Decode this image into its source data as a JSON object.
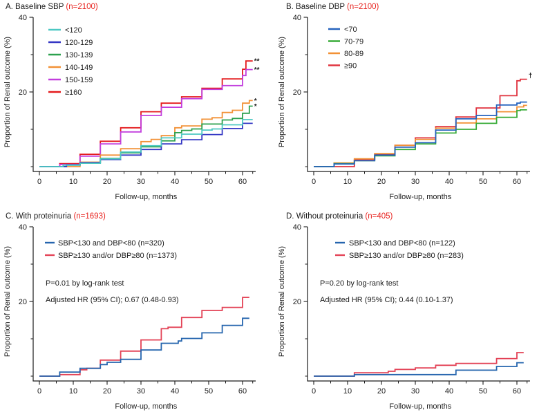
{
  "figure": {
    "background": "#ffffff",
    "text_color": "#1a1a1a",
    "n_label_color": "#e8231f"
  },
  "chart_data": [
    {
      "panel": "A",
      "type": "line",
      "step": true,
      "title": "A. Baseline SBP",
      "n_label": "(n=2100)",
      "xlabel": "Follow-up, months",
      "ylabel": "Proportion of Renal outcome (%)",
      "xlim": [
        0,
        64
      ],
      "ylim": [
        0,
        40
      ],
      "xticks": [
        0,
        10,
        20,
        30,
        40,
        50,
        60
      ],
      "xticks_minor": [
        5,
        15,
        25,
        35,
        45,
        55,
        63
      ],
      "yticks": [
        20,
        40
      ],
      "yticks_minor": [
        0,
        10,
        30
      ],
      "legend_position": "upper-left",
      "stats": [],
      "series": [
        {
          "name": "<120",
          "color": "#4cc8c3",
          "end_marker": "",
          "points": [
            [
              0,
              0
            ],
            [
              7,
              0.4
            ],
            [
              12,
              0.9
            ],
            [
              18,
              2.1
            ],
            [
              24,
              3.9
            ],
            [
              30,
              5.6
            ],
            [
              36,
              7.7
            ],
            [
              42,
              8.7
            ],
            [
              48,
              9.8
            ],
            [
              51,
              10.1
            ],
            [
              54,
              11.2
            ],
            [
              60,
              12.6
            ],
            [
              63,
              12.6
            ]
          ]
        },
        {
          "name": "120-129",
          "color": "#3437c4",
          "end_marker": "",
          "points": [
            [
              0,
              0
            ],
            [
              8,
              0.5
            ],
            [
              12,
              1.1
            ],
            [
              18,
              1.9
            ],
            [
              24,
              3.1
            ],
            [
              30,
              4.6
            ],
            [
              36,
              6.1
            ],
            [
              42,
              7.2
            ],
            [
              48,
              8.6
            ],
            [
              54,
              10.2
            ],
            [
              60,
              11.6
            ],
            [
              63,
              11.6
            ]
          ]
        },
        {
          "name": "130-139",
          "color": "#2ca14e",
          "end_marker": "*",
          "points": [
            [
              0,
              0
            ],
            [
              8,
              0.4
            ],
            [
              12,
              1.0
            ],
            [
              18,
              2.2
            ],
            [
              24,
              3.7
            ],
            [
              30,
              5.3
            ],
            [
              36,
              6.9
            ],
            [
              40,
              9.1
            ],
            [
              42,
              9.7
            ],
            [
              45,
              10.1
            ],
            [
              48,
              11.4
            ],
            [
              54,
              12.5
            ],
            [
              57,
              12.9
            ],
            [
              60,
              14.3
            ],
            [
              62,
              16.2
            ],
            [
              63,
              16.2
            ]
          ]
        },
        {
          "name": "140-149",
          "color": "#f29136",
          "end_marker": "*",
          "points": [
            [
              0,
              0
            ],
            [
              12,
              1.2
            ],
            [
              18,
              3.1
            ],
            [
              24,
              4.8
            ],
            [
              30,
              6.7
            ],
            [
              33,
              7.3
            ],
            [
              36,
              8.3
            ],
            [
              40,
              10.4
            ],
            [
              42,
              10.9
            ],
            [
              48,
              12.7
            ],
            [
              51,
              13.1
            ],
            [
              54,
              14.5
            ],
            [
              57,
              15.1
            ],
            [
              60,
              17.0
            ],
            [
              62,
              17.7
            ],
            [
              63,
              17.7
            ]
          ]
        },
        {
          "name": "150-159",
          "color": "#c23ede",
          "end_marker": "**",
          "points": [
            [
              0,
              0
            ],
            [
              6,
              0.6
            ],
            [
              12,
              2.8
            ],
            [
              18,
              6.1
            ],
            [
              24,
              9.3
            ],
            [
              30,
              13.7
            ],
            [
              36,
              15.9
            ],
            [
              42,
              18.2
            ],
            [
              48,
              20.7
            ],
            [
              54,
              21.7
            ],
            [
              60,
              24.4
            ],
            [
              61,
              26.0
            ],
            [
              63,
              26.0
            ]
          ]
        },
        {
          "name": "≥160",
          "color": "#e41a1c",
          "end_marker": "**",
          "points": [
            [
              0,
              0
            ],
            [
              6,
              0.8
            ],
            [
              12,
              3.3
            ],
            [
              18,
              6.8
            ],
            [
              24,
              10.4
            ],
            [
              30,
              14.7
            ],
            [
              36,
              17.0
            ],
            [
              42,
              18.7
            ],
            [
              48,
              21.0
            ],
            [
              54,
              23.5
            ],
            [
              60,
              26.1
            ],
            [
              61,
              28.3
            ],
            [
              63,
              28.3
            ]
          ]
        }
      ]
    },
    {
      "panel": "B",
      "type": "line",
      "step": true,
      "title": "B. Baseline DBP",
      "n_label": "(n=2100)",
      "xlabel": "Follow-up, months",
      "ylabel": "Proportion of Renal outcome (%)",
      "xlim": [
        0,
        64
      ],
      "ylim": [
        0,
        40
      ],
      "xticks": [
        0,
        10,
        20,
        30,
        40,
        50,
        60
      ],
      "xticks_minor": [
        5,
        15,
        25,
        35,
        45,
        55,
        63
      ],
      "yticks": [
        20,
        40
      ],
      "yticks_minor": [
        0,
        10,
        30
      ],
      "legend_position": "upper-left",
      "stats": [],
      "series": [
        {
          "name": "<70",
          "color": "#2563be",
          "end_marker": "",
          "points": [
            [
              0,
              0
            ],
            [
              6,
              0.7
            ],
            [
              12,
              1.6
            ],
            [
              18,
              3.1
            ],
            [
              24,
              5.2
            ],
            [
              30,
              6.4
            ],
            [
              36,
              9.8
            ],
            [
              42,
              12.8
            ],
            [
              48,
              13.7
            ],
            [
              54,
              16.5
            ],
            [
              60,
              17.0
            ],
            [
              61,
              17.3
            ],
            [
              63,
              17.3
            ]
          ]
        },
        {
          "name": "70-79",
          "color": "#39ac39",
          "end_marker": "",
          "points": [
            [
              0,
              0
            ],
            [
              6,
              0.8
            ],
            [
              12,
              1.6
            ],
            [
              18,
              2.9
            ],
            [
              24,
              4.6
            ],
            [
              30,
              6.1
            ],
            [
              36,
              9.0
            ],
            [
              42,
              10.0
            ],
            [
              48,
              11.6
            ],
            [
              54,
              13.2
            ],
            [
              60,
              15.0
            ],
            [
              61,
              15.2
            ],
            [
              63,
              15.2
            ]
          ]
        },
        {
          "name": "80-89",
          "color": "#f29136",
          "end_marker": "",
          "points": [
            [
              0,
              0
            ],
            [
              6,
              1.0
            ],
            [
              12,
              2.1
            ],
            [
              18,
              3.5
            ],
            [
              24,
              5.7
            ],
            [
              30,
              7.3
            ],
            [
              36,
              10.3
            ],
            [
              42,
              11.7
            ],
            [
              48,
              12.8
            ],
            [
              54,
              14.7
            ],
            [
              60,
              16.0
            ],
            [
              62,
              16.4
            ],
            [
              63,
              16.4
            ]
          ]
        },
        {
          "name": "≥90",
          "color": "#e0333f",
          "end_marker": "†",
          "points": [
            [
              0,
              0
            ],
            [
              12,
              1.9
            ],
            [
              18,
              3.4
            ],
            [
              24,
              5.7
            ],
            [
              30,
              7.7
            ],
            [
              36,
              10.7
            ],
            [
              42,
              13.3
            ],
            [
              48,
              15.7
            ],
            [
              55,
              19.0
            ],
            [
              60,
              23.0
            ],
            [
              61,
              23.4
            ],
            [
              63,
              23.4
            ]
          ]
        }
      ]
    },
    {
      "panel": "C",
      "type": "line",
      "step": true,
      "title": "C. With proteinuria",
      "n_label": "(n=1693)",
      "xlabel": "Follow-up, months",
      "ylabel": "Proportion of Renal outcome (%)",
      "xlim": [
        0,
        64
      ],
      "ylim": [
        0,
        40
      ],
      "xticks": [
        0,
        10,
        20,
        30,
        40,
        50,
        60
      ],
      "xticks_minor": [
        5,
        15,
        25,
        35,
        45,
        55,
        63
      ],
      "yticks": [
        20,
        40
      ],
      "yticks_minor": [
        0,
        10,
        30
      ],
      "legend_position": "upper-left",
      "stats": [
        "P=0.01 by log-rank test",
        "Adjusted HR (95% CI); 0.67 (0.48-0.93)"
      ],
      "series": [
        {
          "name": "SBP<130 and DBP<80 (n=320)",
          "color": "#2565ae",
          "end_marker": "",
          "points": [
            [
              0,
              0
            ],
            [
              6,
              1.1
            ],
            [
              12,
              2.1
            ],
            [
              18,
              3.1
            ],
            [
              20,
              3.7
            ],
            [
              24,
              4.5
            ],
            [
              30,
              7.0
            ],
            [
              36,
              8.8
            ],
            [
              41,
              9.4
            ],
            [
              42,
              10.1
            ],
            [
              48,
              11.6
            ],
            [
              54,
              13.6
            ],
            [
              60,
              15.5
            ],
            [
              62,
              15.5
            ]
          ]
        },
        {
          "name": "SBP≥130 and/or DBP≥80 (n=1373)",
          "color": "#e34256",
          "end_marker": "",
          "points": [
            [
              0,
              0
            ],
            [
              6,
              0.4
            ],
            [
              12,
              1.7
            ],
            [
              14,
              2.1
            ],
            [
              18,
              4.3
            ],
            [
              24,
              6.7
            ],
            [
              30,
              9.7
            ],
            [
              36,
              12.7
            ],
            [
              38,
              13.1
            ],
            [
              42,
              15.7
            ],
            [
              48,
              17.6
            ],
            [
              54,
              18.4
            ],
            [
              60,
              21.1
            ],
            [
              62,
              21.1
            ]
          ]
        }
      ]
    },
    {
      "panel": "D",
      "type": "line",
      "step": true,
      "title": "D. Without proteinuria",
      "n_label": "(n=405)",
      "xlabel": "Follow-up, months",
      "ylabel": "Proportion of Renal outcome (%)",
      "xlim": [
        0,
        64
      ],
      "ylim": [
        0,
        40
      ],
      "xticks": [
        0,
        10,
        20,
        30,
        40,
        50,
        60
      ],
      "xticks_minor": [
        5,
        15,
        25,
        35,
        45,
        55,
        63
      ],
      "yticks": [
        20,
        40
      ],
      "yticks_minor": [
        0,
        10,
        30
      ],
      "legend_position": "upper-left",
      "stats": [
        "P=0.20 by log-rank test",
        "Adjusted HR (95% CI); 0.44 (0.10-1.37)"
      ],
      "series": [
        {
          "name": "SBP<130 and DBP<80 (n=122)",
          "color": "#2565ae",
          "end_marker": "",
          "points": [
            [
              0,
              0
            ],
            [
              12,
              0.4
            ],
            [
              42,
              1.6
            ],
            [
              54,
              2.6
            ],
            [
              60,
              3.6
            ],
            [
              62,
              3.6
            ]
          ]
        },
        {
          "name": "SBP≥130 and/or DBP≥80 (n=283)",
          "color": "#e34256",
          "end_marker": "",
          "points": [
            [
              0,
              0
            ],
            [
              12,
              0.9
            ],
            [
              22,
              1.3
            ],
            [
              24,
              1.8
            ],
            [
              30,
              2.2
            ],
            [
              36,
              2.9
            ],
            [
              42,
              3.4
            ],
            [
              54,
              4.7
            ],
            [
              60,
              6.3
            ],
            [
              62,
              6.3
            ]
          ]
        }
      ]
    }
  ]
}
